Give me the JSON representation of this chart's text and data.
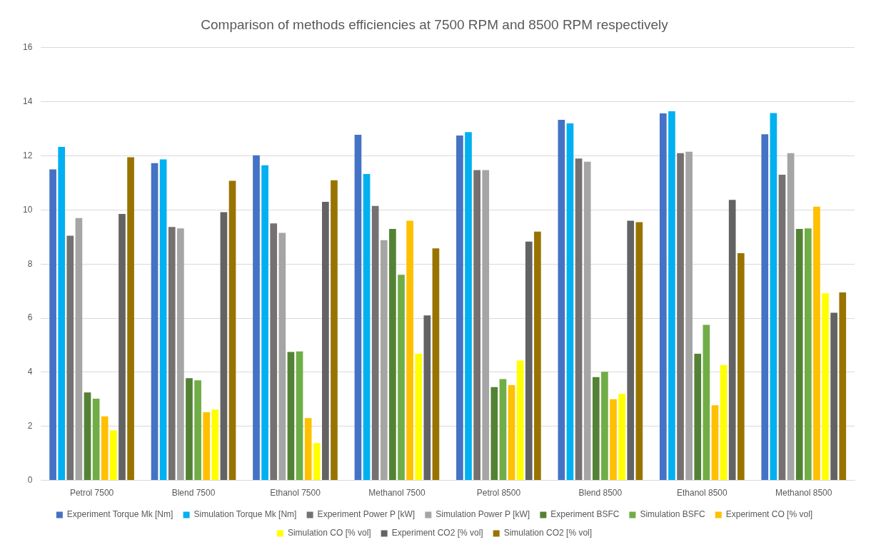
{
  "chart_data": {
    "type": "bar",
    "title": "Comparison of methods efficiencies at 7500 RPM and 8500 RPM respectively",
    "categories": [
      "Petrol 7500",
      "Blend 7500",
      "Ethanol 7500",
      "Methanol 7500",
      "Petrol 8500",
      "Blend 8500",
      "Ethanol 8500",
      "Methanol 8500"
    ],
    "series": [
      {
        "name": "Experiment Torque Mk [Nm]",
        "color": "#4472c4",
        "values": [
          11.5,
          11.73,
          12.02,
          12.78,
          12.75,
          13.33,
          13.57,
          12.8
        ]
      },
      {
        "name": "Simulation Torque Mk [Nm]",
        "color": "#00b0f0",
        "values": [
          12.33,
          11.87,
          11.65,
          11.33,
          12.88,
          13.2,
          13.65,
          13.58
        ]
      },
      {
        "name": "Experiment Power P [kW]",
        "color": "#767171",
        "values": [
          9.05,
          9.37,
          9.5,
          10.15,
          11.47,
          11.9,
          12.1,
          11.3
        ]
      },
      {
        "name": "Simulation Power P [kW]",
        "color": "#a5a5a5",
        "values": [
          9.7,
          9.32,
          9.15,
          8.88,
          11.47,
          11.78,
          12.15,
          12.1
        ]
      },
      {
        "name": "Experiment BSFC",
        "color": "#548235",
        "values": [
          3.25,
          3.78,
          4.75,
          9.3,
          3.45,
          3.82,
          4.68,
          9.3
        ]
      },
      {
        "name": "Simulation BSFC",
        "color": "#70ad47",
        "values": [
          3.02,
          3.7,
          4.77,
          7.6,
          3.75,
          4.02,
          5.75,
          9.32
        ]
      },
      {
        "name": "Experiment CO [% vol]",
        "color": "#ffc000",
        "values": [
          2.37,
          2.52,
          2.3,
          9.6,
          3.52,
          3.0,
          2.78,
          10.12
        ]
      },
      {
        "name": "Simulation CO [% vol]",
        "color": "#ffff00",
        "values": [
          1.85,
          2.62,
          1.38,
          4.68,
          4.43,
          3.2,
          4.27,
          6.92
        ]
      },
      {
        "name": "Experiment CO2 [% vol]",
        "color": "#636363",
        "values": [
          9.85,
          9.92,
          10.3,
          6.1,
          8.83,
          9.6,
          10.37,
          6.2
        ]
      },
      {
        "name": "Simulation CO2 [% vol]",
        "color": "#997300",
        "values": [
          11.95,
          11.08,
          11.1,
          8.58,
          9.2,
          9.55,
          8.4,
          6.95
        ]
      }
    ],
    "ylim": [
      0,
      16
    ],
    "yticks": [
      0,
      2,
      4,
      6,
      8,
      10,
      12,
      14,
      16
    ],
    "grid": "y",
    "legend": "bottom"
  }
}
